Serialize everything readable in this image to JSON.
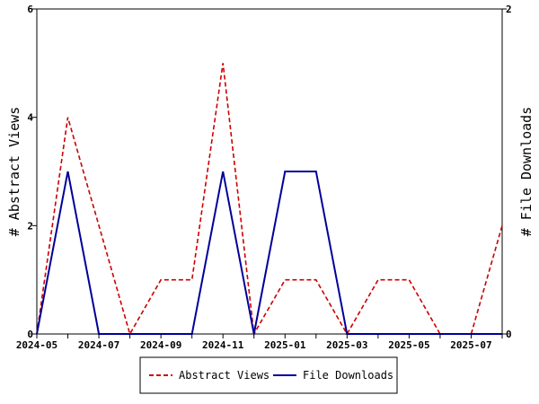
{
  "chart_data": {
    "type": "line",
    "x": [
      "2024-05",
      "2024-06",
      "2024-07",
      "2024-08",
      "2024-09",
      "2024-10",
      "2024-11",
      "2024-12",
      "2025-01",
      "2025-02",
      "2025-03",
      "2025-04",
      "2025-05",
      "2025-06",
      "2025-07",
      "2025-08"
    ],
    "x_tick_labels": [
      "2024-05",
      "2024-07",
      "2024-09",
      "2024-11",
      "2025-01",
      "2025-03",
      "2025-05",
      "2025-07"
    ],
    "series": [
      {
        "name": "Abstract Views",
        "axis": "left",
        "color": "#cc0000",
        "style": "dashed",
        "values": [
          0,
          4,
          2,
          0,
          1,
          1,
          5,
          0,
          1,
          1,
          0,
          1,
          1,
          0,
          0,
          2
        ]
      },
      {
        "name": "File Downloads",
        "axis": "right",
        "color": "#000099",
        "style": "solid",
        "values": [
          0,
          1,
          0,
          0,
          0,
          0,
          1,
          0,
          1,
          1,
          0,
          0,
          0,
          0,
          0,
          0
        ]
      }
    ],
    "ylabel": "# Abstract Views",
    "ylabel_right": "# File Downloads",
    "ylim": [
      0,
      6
    ],
    "ylim_right": [
      0,
      2
    ],
    "yticks": [
      "0",
      "2",
      "4",
      "6"
    ],
    "yticks_right": [
      "0",
      "2"
    ],
    "grid": false,
    "legend_position": "bottom-center"
  }
}
